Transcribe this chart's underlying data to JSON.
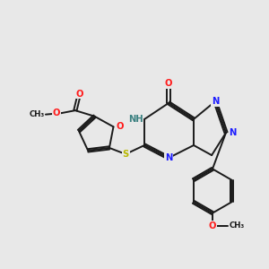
{
  "bg": "#e8e8e8",
  "bc": "#1a1a1a",
  "bw": 1.4,
  "dbo": 0.055,
  "colors": {
    "N": "#1c1cff",
    "O": "#ff1c1c",
    "S": "#b8b800",
    "NH": "#3a8080",
    "C": "#1a1a1a"
  },
  "fs": 7.2,
  "fs2": 6.2
}
